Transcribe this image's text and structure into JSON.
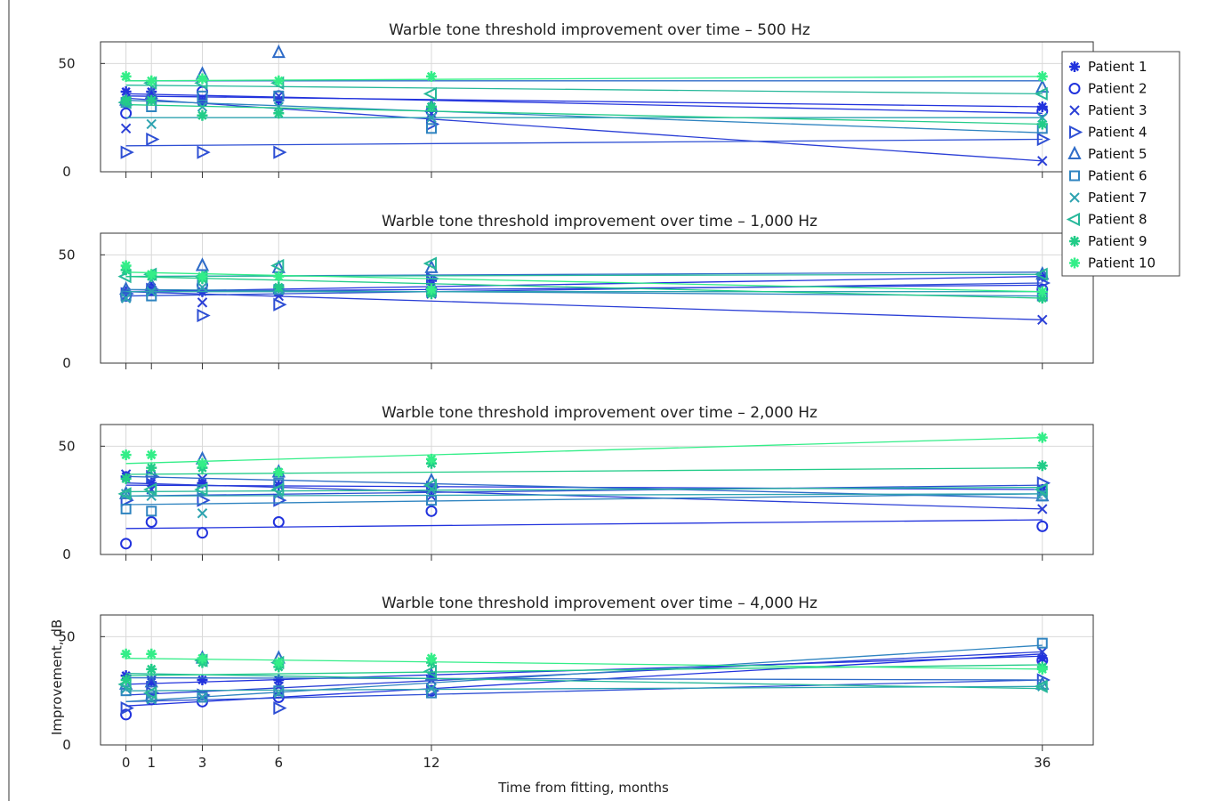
{
  "figure": {
    "xlabel": "Time from fitting, months",
    "ylabel": "Improvement, dB"
  },
  "legend": {
    "placement": "right, beside top panel",
    "entries": [
      "Patient 1",
      "Patient 2",
      "Patient 3",
      "Patient 4",
      "Patient 5",
      "Patient 6",
      "Patient 7",
      "Patient 8",
      "Patient 9",
      "Patient 10"
    ]
  },
  "series_style": [
    {
      "name": "Patient 1",
      "marker": "star",
      "color": "#2233dd"
    },
    {
      "name": "Patient 2",
      "marker": "circle",
      "color": "#2233dd"
    },
    {
      "name": "Patient 3",
      "marker": "x",
      "color": "#2b3fd6"
    },
    {
      "name": "Patient 4",
      "marker": "triangle-right",
      "color": "#2e4fd4"
    },
    {
      "name": "Patient 5",
      "marker": "triangle-up",
      "color": "#2f6cc8"
    },
    {
      "name": "Patient 6",
      "marker": "square",
      "color": "#2f84c0"
    },
    {
      "name": "Patient 7",
      "marker": "x",
      "color": "#2ea3b0"
    },
    {
      "name": "Patient 8",
      "marker": "triangle-left",
      "color": "#27b89a"
    },
    {
      "name": "Patient 9",
      "marker": "star",
      "color": "#22cc88"
    },
    {
      "name": "Patient 10",
      "marker": "star",
      "color": "#33ee88"
    }
  ],
  "chart_data": [
    {
      "type": "scatter",
      "title": "Warble tone threshold improvement over time – 500 Hz",
      "x_ticks": [
        0,
        1,
        3,
        6,
        12,
        36
      ],
      "y_ticks": [
        0,
        50
      ],
      "xlim": [
        -1,
        38
      ],
      "ylim": [
        0,
        60
      ],
      "grid": true,
      "series": [
        {
          "name": "Patient 1",
          "x": [
            0,
            1,
            3,
            6,
            12,
            36
          ],
          "y": [
            37,
            37,
            32,
            33,
            30,
            30
          ],
          "trend": [
            35,
            30
          ]
        },
        {
          "name": "Patient 2",
          "x": [
            0,
            1,
            3,
            6,
            12,
            36
          ],
          "y": [
            27,
            34,
            37,
            35,
            28,
            28
          ],
          "trend": [
            36,
            27
          ]
        },
        {
          "name": "Patient 3",
          "x": [
            0,
            1,
            3,
            6,
            12,
            36
          ],
          "y": [
            20,
            35,
            33,
            35,
            27,
            5
          ],
          "trend": [
            34,
            5
          ]
        },
        {
          "name": "Patient 4",
          "x": [
            0,
            1,
            3,
            6,
            12,
            36
          ],
          "y": [
            9,
            15,
            9,
            9,
            22,
            15
          ],
          "trend": [
            12,
            15
          ]
        },
        {
          "name": "Patient 5",
          "x": [
            0,
            1,
            3,
            6,
            12,
            36
          ],
          "y": [
            33,
            36,
            45,
            55,
            30,
            39
          ],
          "trend": [
            42,
            42
          ]
        },
        {
          "name": "Patient 6",
          "x": [
            0,
            1,
            3,
            6,
            12,
            36
          ],
          "y": [
            32,
            30,
            35,
            35,
            20,
            20
          ],
          "trend": [
            33,
            18
          ]
        },
        {
          "name": "Patient 7",
          "x": [
            0,
            1,
            3,
            6,
            12,
            36
          ],
          "y": [
            32,
            22,
            30,
            30,
            25,
            25
          ],
          "trend": [
            25,
            25
          ]
        },
        {
          "name": "Patient 8",
          "x": [
            0,
            1,
            3,
            6,
            12,
            36
          ],
          "y": [
            32,
            41,
            41,
            41,
            36,
            36
          ],
          "trend": [
            40,
            36
          ]
        },
        {
          "name": "Patient 9",
          "x": [
            0,
            1,
            3,
            6,
            12,
            36
          ],
          "y": [
            33,
            33,
            26,
            27,
            30,
            22
          ],
          "trend": [
            31,
            22
          ]
        },
        {
          "name": "Patient 10",
          "x": [
            0,
            1,
            3,
            6,
            12,
            36
          ],
          "y": [
            44,
            42,
            43,
            42,
            44,
            44
          ],
          "trend": [
            42,
            44
          ]
        }
      ]
    },
    {
      "type": "scatter",
      "title": "Warble tone threshold improvement over time – 1,000 Hz",
      "x_ticks": [
        0,
        1,
        3,
        6,
        12,
        36
      ],
      "y_ticks": [
        0,
        50
      ],
      "xlim": [
        -1,
        38
      ],
      "ylim": [
        0,
        60
      ],
      "grid": true,
      "series": [
        {
          "name": "Patient 1",
          "x": [
            0,
            1,
            3,
            6,
            12,
            36
          ],
          "y": [
            33,
            35,
            33,
            35,
            38,
            40
          ],
          "trend": [
            33,
            40
          ]
        },
        {
          "name": "Patient 2",
          "x": [
            0,
            1,
            3,
            6,
            12,
            36
          ],
          "y": [
            31,
            34,
            36,
            33,
            34,
            34
          ],
          "trend": [
            33,
            36
          ]
        },
        {
          "name": "Patient 3",
          "x": [
            0,
            1,
            3,
            6,
            12,
            36
          ],
          "y": [
            30,
            33,
            28,
            31,
            32,
            20
          ],
          "trend": [
            33,
            20
          ]
        },
        {
          "name": "Patient 4",
          "x": [
            0,
            1,
            3,
            6,
            12,
            36
          ],
          "y": [
            32,
            34,
            22,
            27,
            39,
            37
          ],
          "trend": [
            31,
            37
          ]
        },
        {
          "name": "Patient 5",
          "x": [
            0,
            1,
            3,
            6,
            12,
            36
          ],
          "y": [
            34,
            36,
            45,
            44,
            44,
            41
          ],
          "trend": [
            40,
            42
          ]
        },
        {
          "name": "Patient 6",
          "x": [
            0,
            1,
            3,
            6,
            12,
            36
          ],
          "y": [
            31,
            31,
            36,
            34,
            33,
            31
          ],
          "trend": [
            34,
            31
          ]
        },
        {
          "name": "Patient 7",
          "x": [
            0,
            1,
            3,
            6,
            12,
            36
          ],
          "y": [
            30,
            33,
            35,
            34,
            33,
            33
          ],
          "trend": [
            33,
            33
          ]
        },
        {
          "name": "Patient 8",
          "x": [
            0,
            1,
            3,
            6,
            12,
            36
          ],
          "y": [
            40,
            41,
            40,
            45,
            46,
            41
          ],
          "trend": [
            40,
            41
          ]
        },
        {
          "name": "Patient 9",
          "x": [
            0,
            1,
            3,
            6,
            12,
            36
          ],
          "y": [
            43,
            40,
            39,
            35,
            32,
            30
          ],
          "trend": [
            40,
            30
          ]
        },
        {
          "name": "Patient 10",
          "x": [
            0,
            1,
            3,
            6,
            12,
            36
          ],
          "y": [
            45,
            41,
            40,
            40,
            34,
            33
          ],
          "trend": [
            42,
            33
          ]
        }
      ]
    },
    {
      "type": "scatter",
      "title": "Warble tone threshold improvement over time – 2,000 Hz",
      "x_ticks": [
        0,
        1,
        3,
        6,
        12,
        36
      ],
      "y_ticks": [
        0,
        50
      ],
      "xlim": [
        -1,
        38
      ],
      "ylim": [
        0,
        60
      ],
      "grid": true,
      "series": [
        {
          "name": "Patient 1",
          "x": [
            0,
            1,
            3,
            6,
            12,
            36
          ],
          "y": [
            36,
            33,
            33,
            32,
            30,
            30
          ],
          "trend": [
            32,
            30
          ]
        },
        {
          "name": "Patient 2",
          "x": [
            0,
            1,
            3,
            6,
            12,
            36
          ],
          "y": [
            5,
            15,
            10,
            15,
            20,
            13
          ],
          "trend": [
            12,
            16
          ]
        },
        {
          "name": "Patient 3",
          "x": [
            0,
            1,
            3,
            6,
            12,
            36
          ],
          "y": [
            37,
            30,
            35,
            32,
            27,
            21
          ],
          "trend": [
            33,
            21
          ]
        },
        {
          "name": "Patient 4",
          "x": [
            0,
            1,
            3,
            6,
            12,
            36
          ],
          "y": [
            25,
            36,
            25,
            25,
            31,
            33
          ],
          "trend": [
            27,
            32
          ]
        },
        {
          "name": "Patient 5",
          "x": [
            0,
            1,
            3,
            6,
            12,
            36
          ],
          "y": [
            28,
            38,
            44,
            38,
            34,
            27
          ],
          "trend": [
            36,
            26
          ]
        },
        {
          "name": "Patient 6",
          "x": [
            0,
            1,
            3,
            6,
            12,
            36
          ],
          "y": [
            21,
            20,
            30,
            33,
            25,
            27
          ],
          "trend": [
            23,
            28
          ]
        },
        {
          "name": "Patient 7",
          "x": [
            0,
            1,
            3,
            6,
            12,
            36
          ],
          "y": [
            28,
            27,
            19,
            28,
            30,
            28
          ],
          "trend": [
            27,
            28
          ]
        },
        {
          "name": "Patient 8",
          "x": [
            0,
            1,
            3,
            6,
            12,
            36
          ],
          "y": [
            28,
            30,
            30,
            30,
            32,
            30
          ],
          "trend": [
            29,
            31
          ]
        },
        {
          "name": "Patient 9",
          "x": [
            0,
            1,
            3,
            6,
            12,
            36
          ],
          "y": [
            35,
            40,
            40,
            38,
            42,
            41
          ],
          "trend": [
            37,
            40
          ]
        },
        {
          "name": "Patient 10",
          "x": [
            0,
            1,
            3,
            6,
            12,
            36
          ],
          "y": [
            46,
            46,
            42,
            38,
            44,
            54
          ],
          "trend": [
            42,
            54
          ]
        }
      ]
    },
    {
      "type": "scatter",
      "title": "Warble tone threshold improvement over time – 4,000 Hz",
      "x_ticks": [
        0,
        1,
        3,
        6,
        12,
        36
      ],
      "y_ticks": [
        0,
        50
      ],
      "xlim": [
        -1,
        38
      ],
      "ylim": [
        0,
        60
      ],
      "grid": true,
      "series": [
        {
          "name": "Patient 1",
          "x": [
            0,
            1,
            3,
            6,
            12,
            36
          ],
          "y": [
            32,
            29,
            30,
            30,
            32,
            40
          ],
          "trend": [
            28,
            41
          ]
        },
        {
          "name": "Patient 2",
          "x": [
            0,
            1,
            3,
            6,
            12,
            36
          ],
          "y": [
            14,
            21,
            20,
            22,
            25,
            39
          ],
          "trend": [
            18,
            42
          ]
        },
        {
          "name": "Patient 3",
          "x": [
            0,
            1,
            3,
            6,
            12,
            36
          ],
          "y": [
            26,
            30,
            22,
            27,
            30,
            43
          ],
          "trend": [
            23,
            43
          ]
        },
        {
          "name": "Patient 4",
          "x": [
            0,
            1,
            3,
            6,
            12,
            36
          ],
          "y": [
            17,
            24,
            23,
            17,
            25,
            30
          ],
          "trend": [
            20,
            30
          ]
        },
        {
          "name": "Patient 5",
          "x": [
            0,
            1,
            3,
            6,
            12,
            36
          ],
          "y": [
            28,
            29,
            40,
            40,
            32,
            28
          ],
          "trend": [
            31,
            30
          ]
        },
        {
          "name": "Patient 6",
          "x": [
            0,
            1,
            3,
            6,
            12,
            36
          ],
          "y": [
            25,
            22,
            22,
            25,
            24,
            47
          ],
          "trend": [
            20,
            46
          ]
        },
        {
          "name": "Patient 7",
          "x": [
            0,
            1,
            3,
            6,
            12,
            36
          ],
          "y": [
            26,
            21,
            22,
            24,
            26,
            27
          ],
          "trend": [
            25,
            27
          ]
        },
        {
          "name": "Patient 8",
          "x": [
            0,
            1,
            3,
            6,
            12,
            36
          ],
          "y": [
            28,
            24,
            39,
            38,
            34,
            27
          ],
          "trend": [
            33,
            26
          ]
        },
        {
          "name": "Patient 9",
          "x": [
            0,
            1,
            3,
            6,
            12,
            36
          ],
          "y": [
            30,
            35,
            38,
            36,
            38,
            36
          ],
          "trend": [
            32,
            37
          ]
        },
        {
          "name": "Patient 10",
          "x": [
            0,
            1,
            3,
            6,
            12,
            36
          ],
          "y": [
            42,
            42,
            40,
            38,
            40,
            35
          ],
          "trend": [
            40,
            35
          ]
        }
      ]
    }
  ]
}
